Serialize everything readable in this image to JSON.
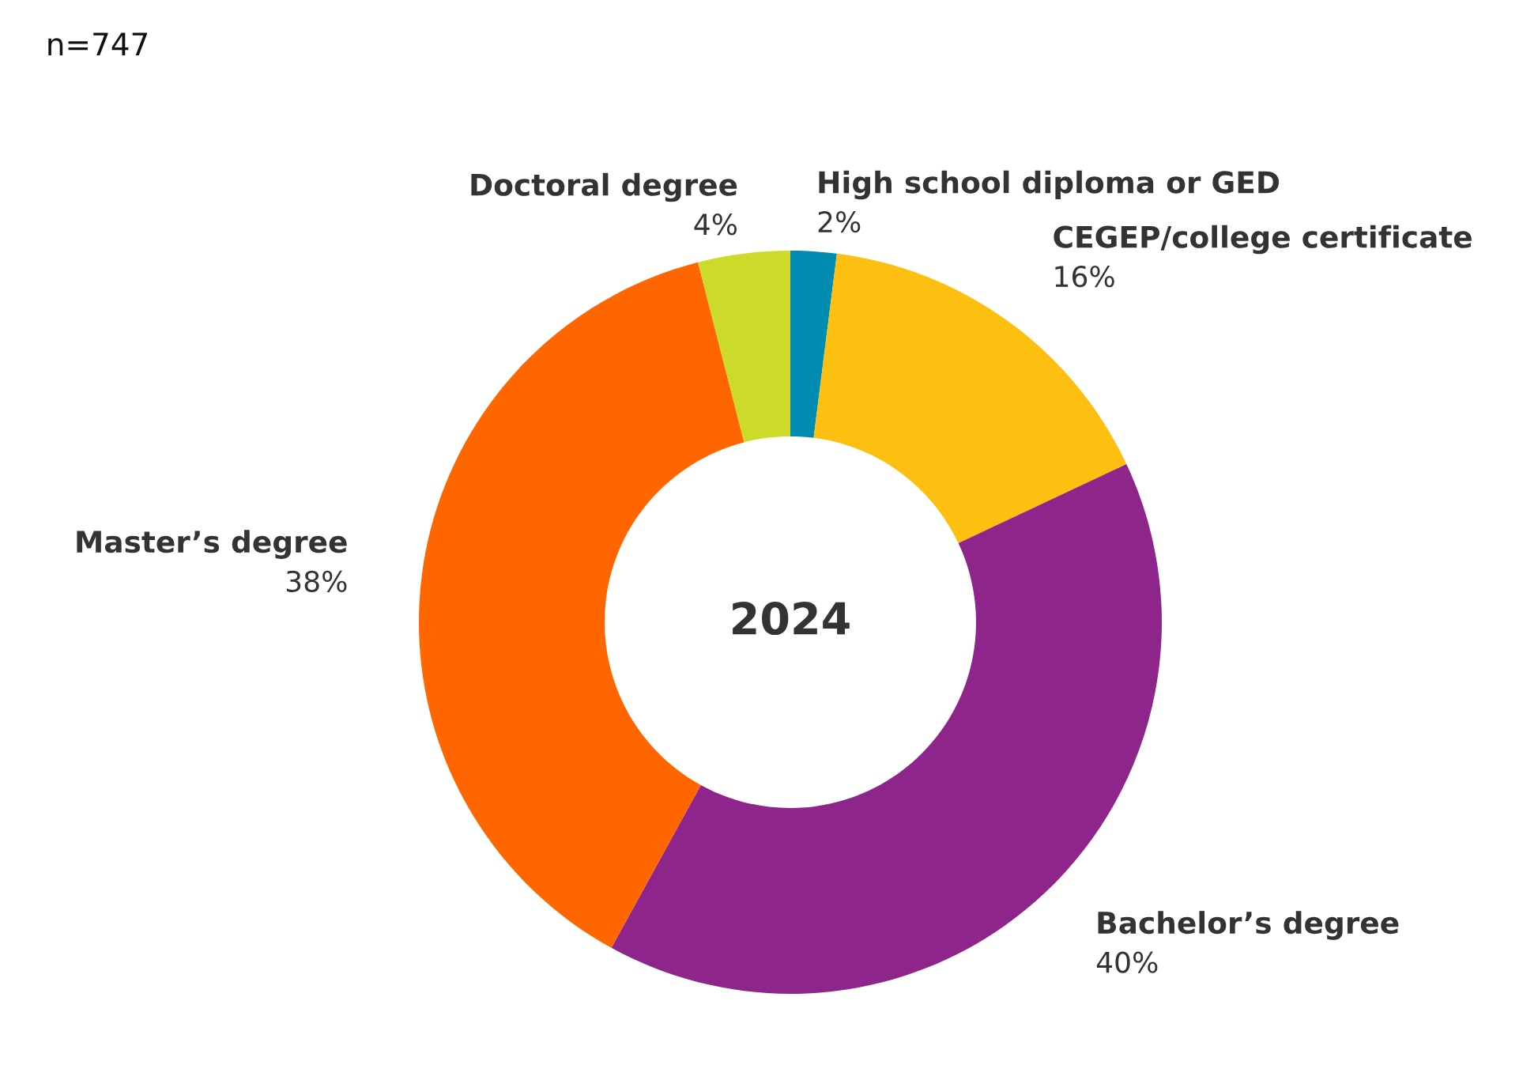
{
  "chart_data": {
    "type": "donut",
    "title": "2024",
    "categories": [
      "High school diploma or GED",
      "CEGEP/college certificate",
      "Bachelor’s degree",
      "Master’s degree",
      "Doctoral degree"
    ],
    "values": [
      2,
      16,
      40,
      38,
      4
    ],
    "value_labels": [
      "2%",
      "16%",
      "40%",
      "38%",
      "4%"
    ],
    "colors": [
      "#008bb0",
      "#fdc010",
      "#8e258a",
      "#ff6600",
      "#ccdb2a"
    ],
    "annotations": [
      "n=747"
    ],
    "legend": false
  }
}
